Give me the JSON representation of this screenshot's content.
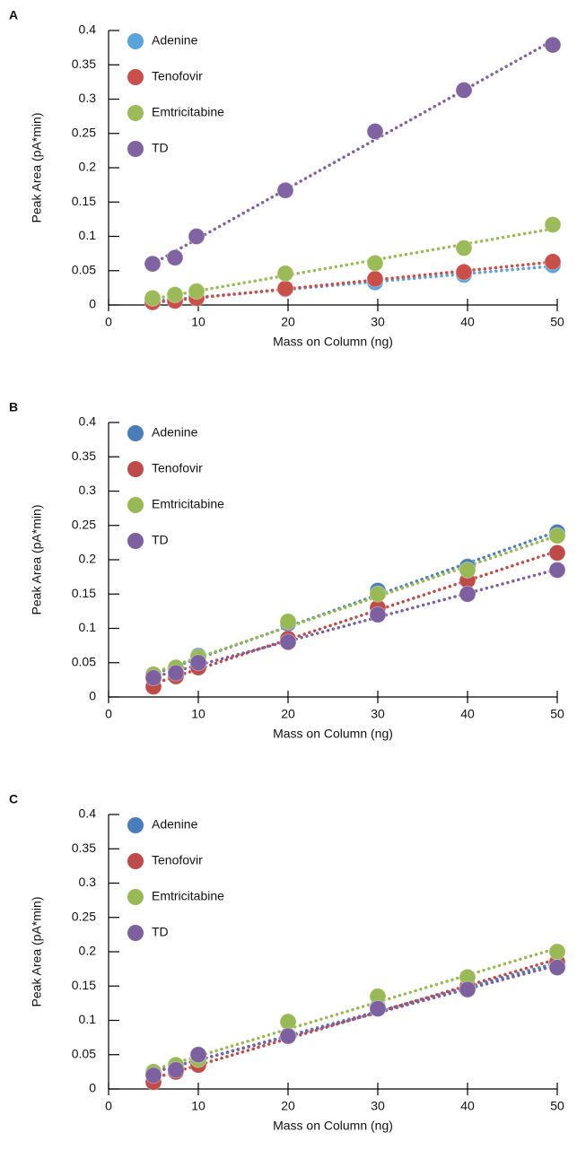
{
  "chart_data": [
    {
      "panel": "A",
      "type": "scatter",
      "trendline": "linear",
      "legend": "top-left",
      "xlabel": "Mass on Column (ng)",
      "ylabel": "Peak Area (pA*min)",
      "xlim": [
        0,
        50
      ],
      "ylim": [
        0,
        0.4
      ],
      "xticks": [
        0,
        10,
        20,
        30,
        40,
        50
      ],
      "yticks": [
        0,
        0.05,
        0.1,
        0.15,
        0.2,
        0.25,
        0.3,
        0.35,
        0.4
      ],
      "x": [
        4.9,
        7.4,
        9.8,
        19.7,
        29.7,
        39.6,
        49.5
      ],
      "series": [
        {
          "name": "Adenine",
          "color": "#5aa3dc",
          "values": [
            0.006,
            0.008,
            0.011,
            0.023,
            0.033,
            0.044,
            0.058
          ]
        },
        {
          "name": "Tenofovir",
          "color": "#c9504a",
          "values": [
            0.004,
            0.006,
            0.01,
            0.024,
            0.038,
            0.048,
            0.063
          ]
        },
        {
          "name": "Emtricitabine",
          "color": "#9bbb59",
          "values": [
            0.01,
            0.015,
            0.02,
            0.046,
            0.061,
            0.083,
            0.117
          ]
        },
        {
          "name": "TD",
          "color": "#8064a2",
          "values": [
            0.06,
            0.069,
            0.1,
            0.167,
            0.253,
            0.313,
            0.379
          ]
        }
      ]
    },
    {
      "panel": "B",
      "type": "scatter",
      "trendline": "linear",
      "legend": "top-left",
      "xlabel": "Mass on Column (ng)",
      "ylabel": "Peak Area (pA*min)",
      "xlim": [
        0,
        50
      ],
      "ylim": [
        0,
        0.4
      ],
      "xticks": [
        0,
        10,
        20,
        30,
        40,
        50
      ],
      "yticks": [
        0,
        0.05,
        0.1,
        0.15,
        0.2,
        0.25,
        0.3,
        0.35,
        0.4
      ],
      "x": [
        5,
        7.5,
        10,
        20,
        30,
        40,
        50
      ],
      "series": [
        {
          "name": "Adenine",
          "color": "#4a7ebb",
          "values": [
            0.03,
            0.04,
            0.06,
            0.107,
            0.155,
            0.19,
            0.24
          ]
        },
        {
          "name": "Tenofovir",
          "color": "#be4b48",
          "values": [
            0.015,
            0.03,
            0.043,
            0.085,
            0.13,
            0.17,
            0.21
          ]
        },
        {
          "name": "Emtricitabine",
          "color": "#98b954",
          "values": [
            0.033,
            0.043,
            0.058,
            0.11,
            0.15,
            0.185,
            0.235
          ]
        },
        {
          "name": "TD",
          "color": "#7d60a0",
          "values": [
            0.028,
            0.035,
            0.05,
            0.08,
            0.12,
            0.15,
            0.185
          ]
        }
      ]
    },
    {
      "panel": "C",
      "type": "scatter",
      "trendline": "linear",
      "legend": "top-left",
      "xlabel": "Mass on Column (ng)",
      "ylabel": "Peak Area (pA*min)",
      "xlim": [
        0,
        50
      ],
      "ylim": [
        0,
        0.4
      ],
      "xticks": [
        0,
        10,
        20,
        30,
        40,
        50
      ],
      "yticks": [
        0,
        0.05,
        0.1,
        0.15,
        0.2,
        0.25,
        0.3,
        0.35,
        0.4
      ],
      "x": [
        5,
        7.5,
        10,
        20,
        30,
        40,
        50
      ],
      "series": [
        {
          "name": "Adenine",
          "color": "#4a7ebb",
          "values": [
            0.022,
            0.03,
            0.045,
            0.078,
            0.12,
            0.148,
            0.18
          ]
        },
        {
          "name": "Tenofovir",
          "color": "#be4b48",
          "values": [
            0.01,
            0.025,
            0.035,
            0.078,
            0.118,
            0.15,
            0.185
          ]
        },
        {
          "name": "Emtricitabine",
          "color": "#98b954",
          "values": [
            0.025,
            0.035,
            0.043,
            0.098,
            0.135,
            0.163,
            0.2
          ]
        },
        {
          "name": "TD",
          "color": "#7d60a0",
          "values": [
            0.02,
            0.028,
            0.05,
            0.077,
            0.117,
            0.145,
            0.177
          ]
        }
      ]
    }
  ]
}
